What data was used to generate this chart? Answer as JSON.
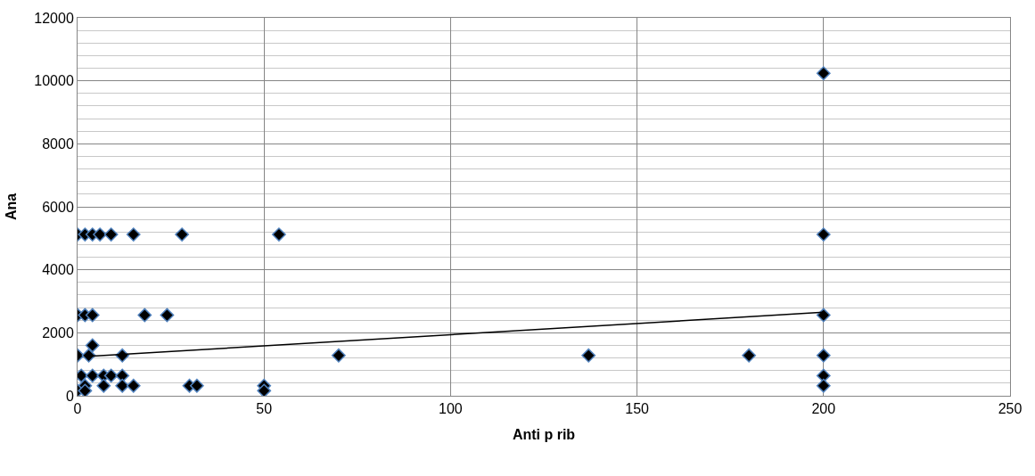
{
  "chart_data": {
    "type": "scatter",
    "xlabel": "Anti p rib",
    "ylabel": "Ana",
    "xlim": [
      0,
      250
    ],
    "xticks": [
      0,
      50,
      100,
      150,
      200,
      250
    ],
    "ylim": [
      0,
      12000
    ],
    "yticks": [
      0,
      2000,
      4000,
      6000,
      8000,
      10000,
      12000
    ],
    "grid": true,
    "series": [
      {
        "marker": "diamond",
        "color": "#000000",
        "x": [
          0,
          2,
          4,
          6,
          9,
          15,
          28,
          54,
          200,
          0,
          2,
          4,
          18,
          24,
          200,
          0,
          3,
          12,
          70,
          137,
          180,
          200,
          4,
          1,
          4,
          7,
          9,
          12,
          200,
          2,
          7,
          12,
          15,
          30,
          32,
          50,
          200,
          0,
          2,
          50,
          200
        ],
        "values": [
          5120,
          5120,
          5120,
          5120,
          5120,
          5120,
          5120,
          5120,
          5120,
          2560,
          2560,
          2560,
          2560,
          2560,
          2560,
          1280,
          1280,
          1280,
          1280,
          1280,
          1280,
          1280,
          1600,
          640,
          640,
          640,
          640,
          640,
          640,
          320,
          320,
          320,
          320,
          320,
          320,
          320,
          320,
          160,
          160,
          160,
          10240
        ]
      },
      {
        "type": "line",
        "marker": "none",
        "color": "#000000",
        "x": [
          3,
          200
        ],
        "values": [
          1250,
          2650
        ]
      }
    ]
  }
}
